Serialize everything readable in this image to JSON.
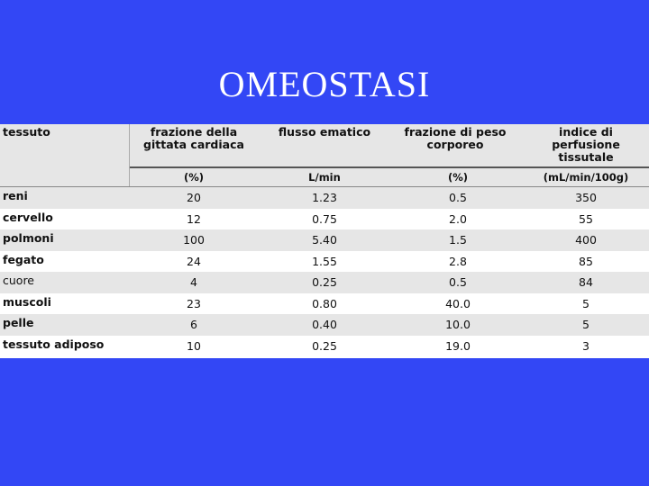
{
  "slide": {
    "title": "OMEOSTASI"
  },
  "table": {
    "headers": {
      "tessuto": "tessuto",
      "col1": [
        "frazione della",
        "gittata cardiaca"
      ],
      "col2": [
        "flusso ematico"
      ],
      "col3": [
        "frazione di peso",
        "corporeo"
      ],
      "col4": [
        "indice di",
        "perfusione",
        "tissutale"
      ]
    },
    "units": [
      "(%)",
      "L/min",
      "(%)",
      "(mL/min/100g)"
    ],
    "rows": [
      {
        "name": "reni",
        "v": [
          "20",
          "1.23",
          "0.5",
          "350"
        ]
      },
      {
        "name": "cervello",
        "v": [
          "12",
          "0.75",
          "2.0",
          "55"
        ]
      },
      {
        "name": "polmoni",
        "v": [
          "100",
          "5.40",
          "1.5",
          "400"
        ]
      },
      {
        "name": "fegato",
        "v": [
          "24",
          "1.55",
          "2.8",
          "85"
        ]
      },
      {
        "name": "cuore",
        "v": [
          "4",
          "0.25",
          "0.5",
          "84"
        ]
      },
      {
        "name": "muscoli",
        "v": [
          "23",
          "0.80",
          "40.0",
          "5"
        ]
      },
      {
        "name": "pelle",
        "v": [
          "6",
          "0.40",
          "10.0",
          "5"
        ]
      },
      {
        "name": "tessuto adiposo",
        "v": [
          "10",
          "0.25",
          "19.0",
          "3"
        ]
      }
    ]
  }
}
